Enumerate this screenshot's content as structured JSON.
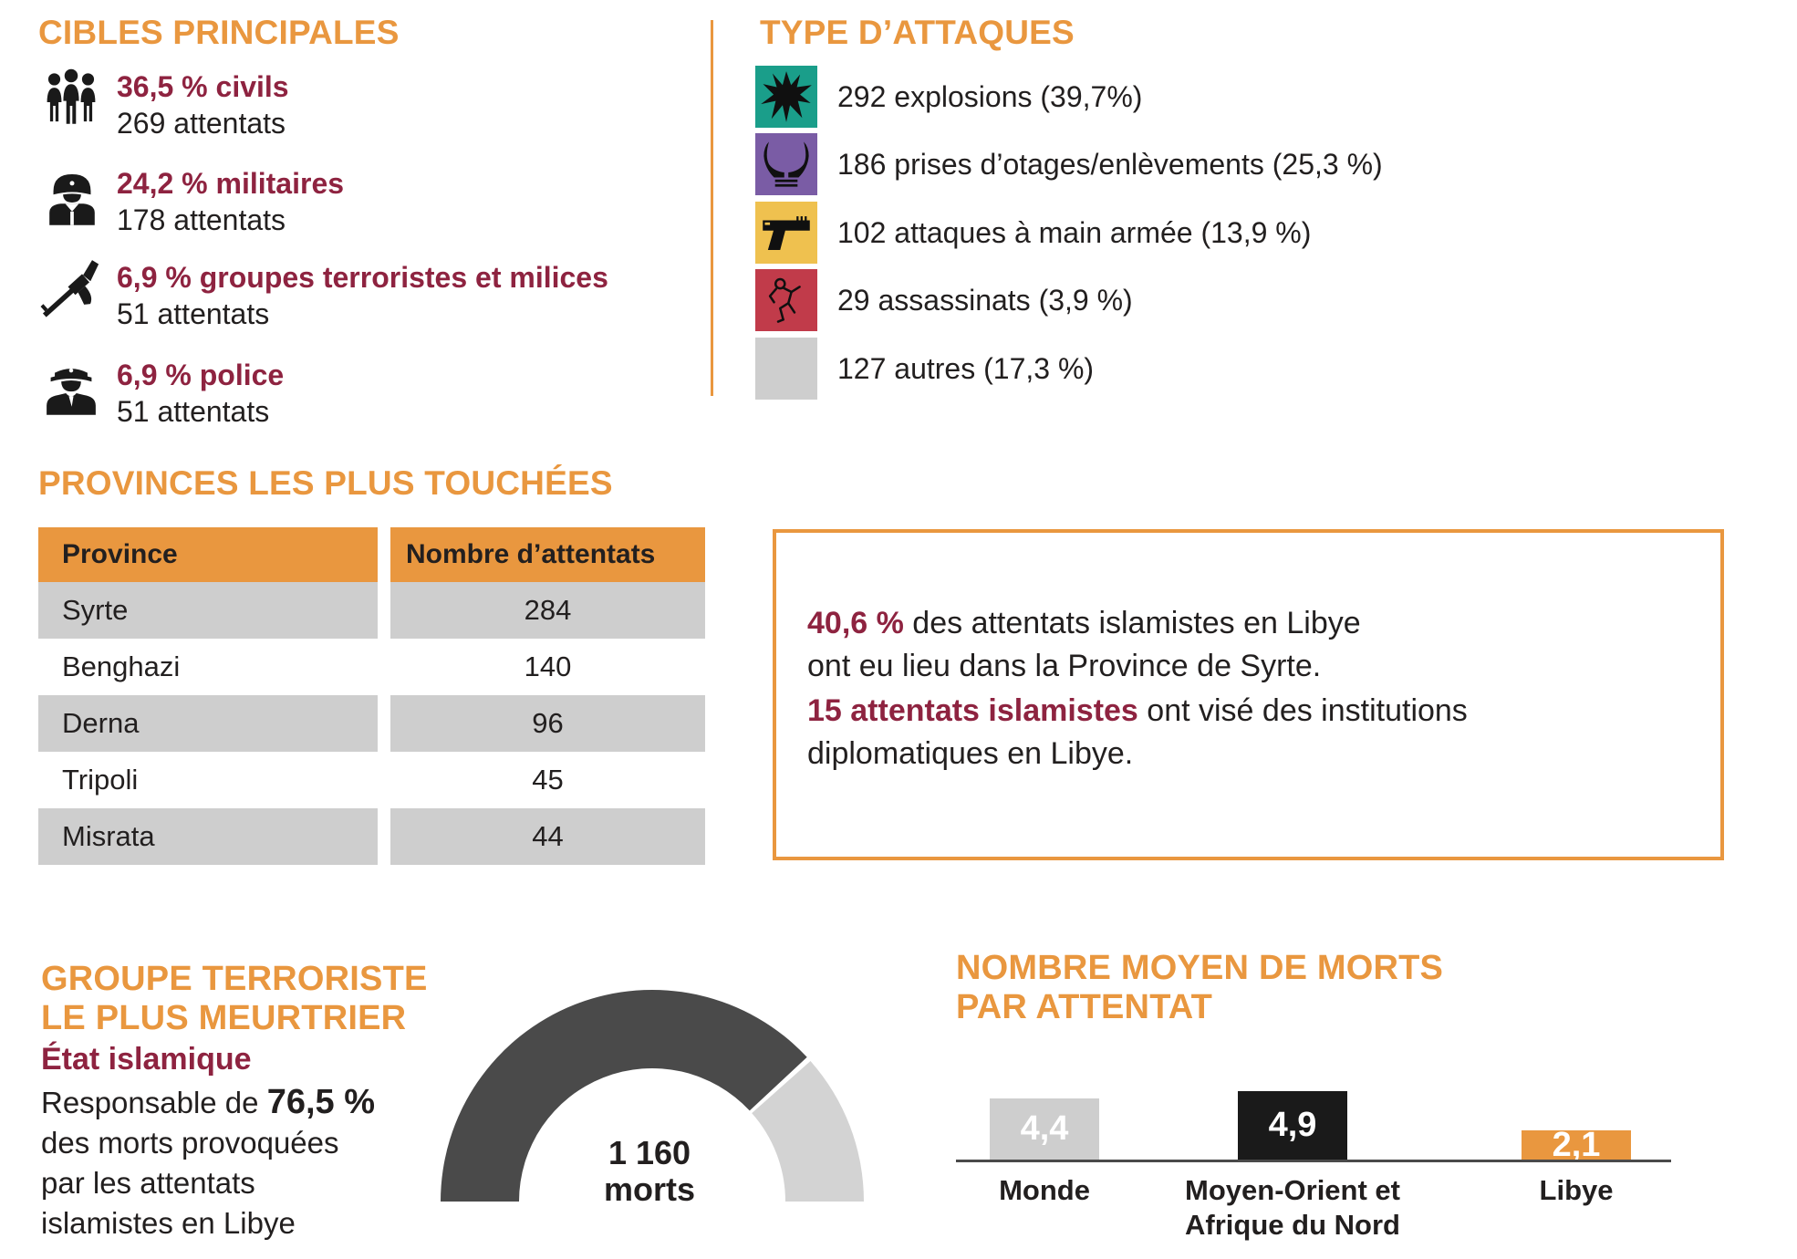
{
  "colors": {
    "accent_orange": "#e9973f",
    "burgundy": "#8e2340",
    "text_black": "#221f1f",
    "teal": "#1a9e8a",
    "purple": "#7a5ca5",
    "yellow": "#efc14f",
    "red": "#c13b4a",
    "light_gray": "#cecece",
    "gauge_dark": "#4a4a4a",
    "gauge_light": "#d3d3d3",
    "bar_black": "#1a1a1a"
  },
  "cibles": {
    "title": "CIBLES PRINCIPALES",
    "items": [
      {
        "icon": "civilians-icon",
        "pct_label": "36,5 % civils",
        "count_label": "269 attentats"
      },
      {
        "icon": "soldier-icon",
        "pct_label": "24,2 % militaires",
        "count_label": "178 attentats"
      },
      {
        "icon": "rifle-icon",
        "pct_label": "6,9 % groupes terroristes et milices",
        "count_label": "51 attentats"
      },
      {
        "icon": "police-icon",
        "pct_label": "6,9 % police",
        "count_label": "51 attentats"
      }
    ]
  },
  "attaques": {
    "title": "TYPE D’ATTAQUES",
    "items": [
      {
        "icon": "explosion-icon",
        "color": "#1a9e8a",
        "label": "292 explosions (39,7%)"
      },
      {
        "icon": "bound-hands-icon",
        "color": "#7a5ca5",
        "label": "186 prises d’otages/enlèvements (25,3 %)"
      },
      {
        "icon": "handgun-icon",
        "color": "#efc14f",
        "label": "102 attaques à main armée (13,9 %)"
      },
      {
        "icon": "body-outline-icon",
        "color": "#c13b4a",
        "label": "29 assassinats (3,9 %)"
      },
      {
        "icon": "blank",
        "color": "#cecece",
        "label": "127 autres (17,3 %)"
      }
    ]
  },
  "provinces": {
    "title": "PROVINCES LES PLUS TOUCHÉES",
    "table": {
      "headers": [
        "Province",
        "Nombre d’attentats"
      ],
      "rows": [
        [
          "Syrte",
          "284"
        ],
        [
          "Benghazi",
          "140"
        ],
        [
          "Derna",
          "96"
        ],
        [
          "Tripoli",
          "45"
        ],
        [
          "Misrata",
          "44"
        ]
      ]
    }
  },
  "callout": {
    "p1_highlight": "40,6 %",
    "p1_rest": " des attentats islamistes en Libye",
    "p1_line2": "ont eu lieu dans la Province de Syrte.",
    "p2_highlight": "15 attentats islamistes",
    "p2_rest": " ont visé des institutions",
    "p2_line2": "diplomatiques en Libye."
  },
  "groupe": {
    "title": "GROUPE TERRORISTE\nLE PLUS MEURTRIER",
    "name": "État islamique",
    "desc_prefix": "Responsable de ",
    "desc_bold": "76,5 %",
    "desc_line2": "des morts provoquées",
    "desc_line3": "par les attentats",
    "desc_line4": "islamistes en Libye"
  },
  "gauge": {
    "percent": 76.5,
    "value_label": "1 160",
    "unit_label": "morts"
  },
  "chart": {
    "title": "NOMBRE MOYEN DE MORTS\nPAR ATTENTAT",
    "bars": [
      {
        "value": 4.4,
        "label": "4,4",
        "category": "Monde",
        "color": "#cecece"
      },
      {
        "value": 4.9,
        "label": "4,9",
        "category": "Moyen-Orient et\nAfrique du Nord",
        "color": "#1a1a1a"
      },
      {
        "value": 2.1,
        "label": "2,1",
        "category": "Libye",
        "color": "#e9973f"
      }
    ]
  },
  "chart_data": [
    {
      "type": "table",
      "title": "CIBLES PRINCIPALES",
      "categories": [
        "civils",
        "militaires",
        "groupes terroristes et milices",
        "police"
      ],
      "series": [
        {
          "name": "pourcentage",
          "values": [
            36.5,
            24.2,
            6.9,
            6.9
          ]
        },
        {
          "name": "attentats",
          "values": [
            269,
            178,
            51,
            51
          ]
        }
      ]
    },
    {
      "type": "table",
      "title": "TYPE D’ATTAQUES",
      "categories": [
        "explosions",
        "prises d’otages/enlèvements",
        "attaques à main armée",
        "assassinats",
        "autres"
      ],
      "series": [
        {
          "name": "nombre",
          "values": [
            292,
            186,
            102,
            29,
            127
          ]
        },
        {
          "name": "pourcentage",
          "values": [
            39.7,
            25.3,
            13.9,
            3.9,
            17.3
          ]
        }
      ]
    },
    {
      "type": "table",
      "title": "PROVINCES LES PLUS TOUCHÉES",
      "categories": [
        "Syrte",
        "Benghazi",
        "Derna",
        "Tripoli",
        "Misrata"
      ],
      "values": [
        284,
        140,
        96,
        45,
        44
      ],
      "xlabel": "Province",
      "ylabel": "Nombre d’attentats"
    },
    {
      "type": "pie",
      "title": "GROUPE TERRORISTE LE PLUS MEURTRIER",
      "subtitle": "État islamique — Responsable de 76,5 % des morts provoquées par les attentats islamistes en Libye",
      "categories": [
        "État islamique",
        "autres"
      ],
      "values": [
        76.5,
        23.5
      ],
      "annotation": "1 160 morts",
      "layout": "half-donut"
    },
    {
      "type": "bar",
      "title": "NOMBRE MOYEN DE MORTS PAR ATTENTAT",
      "categories": [
        "Monde",
        "Moyen-Orient et Afrique du Nord",
        "Libye"
      ],
      "values": [
        4.4,
        4.9,
        2.1
      ],
      "ylim": [
        0,
        5
      ],
      "grid": false,
      "data_labels": [
        "4,4",
        "4,9",
        "2,1"
      ]
    },
    {
      "type": "table",
      "title": "Encadré",
      "categories": [
        "part des attentats en Province de Syrte",
        "attentats contre institutions diplomatiques"
      ],
      "values": [
        40.6,
        15
      ]
    }
  ]
}
